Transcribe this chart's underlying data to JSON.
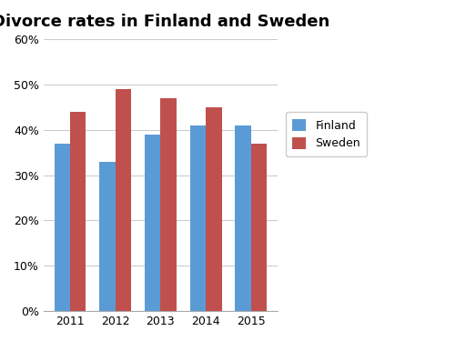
{
  "title": "Divorce rates in Finland and Sweden",
  "years": [
    "2011",
    "2012",
    "2013",
    "2014",
    "2015"
  ],
  "finland": [
    37,
    33,
    39,
    41,
    41
  ],
  "sweden": [
    44,
    49,
    47,
    45,
    37
  ],
  "finland_color": "#5B9BD5",
  "sweden_color": "#C0504D",
  "ylim": [
    0,
    60
  ],
  "yticks": [
    0,
    10,
    20,
    30,
    40,
    50,
    60
  ],
  "ytick_labels": [
    "0%",
    "10%",
    "20%",
    "30%",
    "40%",
    "50%",
    "60%"
  ],
  "legend_labels": [
    "Finland",
    "Sweden"
  ],
  "bar_width": 0.35,
  "plot_bg_color": "#FFFFFF",
  "fig_bg_color": "#FFFFFF",
  "grid_color": "#CCCCCC",
  "title_fontsize": 13,
  "tick_fontsize": 9,
  "legend_fontsize": 9
}
